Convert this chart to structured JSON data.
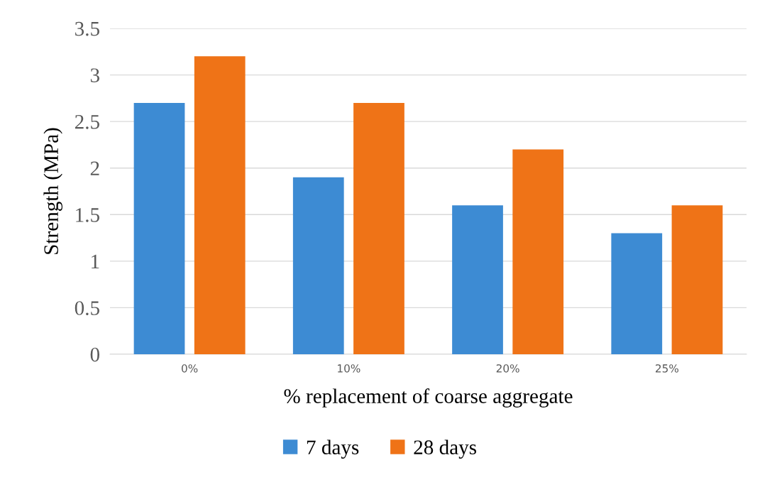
{
  "chart_data": {
    "type": "bar",
    "xlabel": "% replacement of coarse aggregate",
    "ylabel": "Strength (MPa)",
    "categories": [
      "0%",
      "10%",
      "20%",
      "25%"
    ],
    "series": [
      {
        "name": "7 days",
        "color": "#3d8bd3",
        "values": [
          2.7,
          1.9,
          1.6,
          1.3
        ]
      },
      {
        "name": "28 days",
        "color": "#ef7317",
        "values": [
          3.2,
          2.7,
          2.2,
          1.6
        ]
      }
    ],
    "ylim": [
      0,
      3.5
    ],
    "yticks": [
      0,
      0.5,
      1,
      1.5,
      2,
      2.5,
      3,
      3.5
    ],
    "grid": "y",
    "legend": "bottom"
  }
}
